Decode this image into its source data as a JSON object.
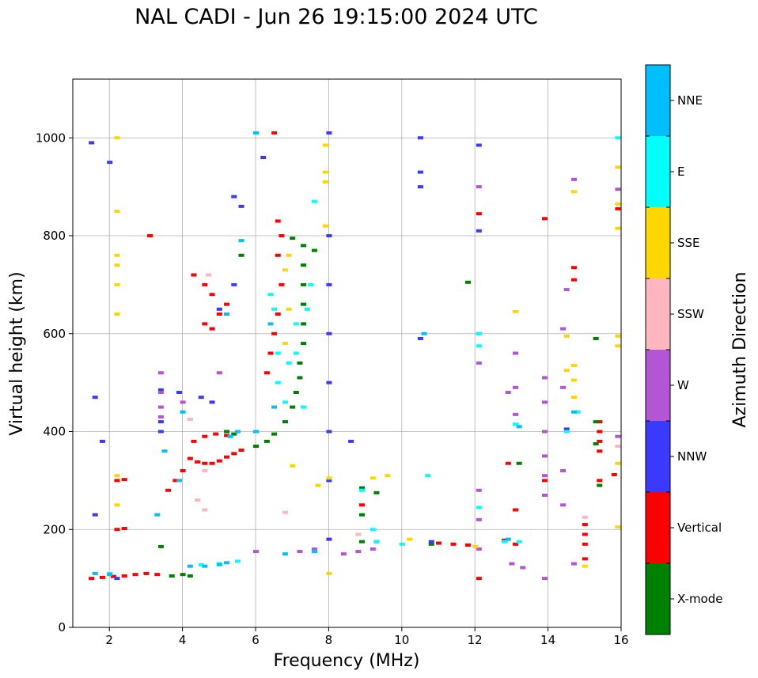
{
  "chart_data": {
    "type": "scatter",
    "title": "NAL CADI - Jun 26 19:15:00 2024 UTC",
    "xlabel": "Frequency (MHz)",
    "ylabel": "Virtual height (km)",
    "xlim": [
      1,
      16
    ],
    "ylim": [
      0,
      1120
    ],
    "xticks": [
      2,
      4,
      6,
      8,
      10,
      12,
      14,
      16
    ],
    "yticks": [
      0,
      200,
      400,
      600,
      800,
      1000
    ],
    "grid": true,
    "colorbar": {
      "label": "Azimuth Direction",
      "categories": [
        {
          "name": "X-mode",
          "color": "#008000"
        },
        {
          "name": "Vertical",
          "color": "#ff0000"
        },
        {
          "name": "NNW",
          "color": "#3a3aff"
        },
        {
          "name": "W",
          "color": "#b455d6"
        },
        {
          "name": "SSW",
          "color": "#ffb6c1"
        },
        {
          "name": "SSE",
          "color": "#ffd700"
        },
        {
          "name": "E",
          "color": "#00ffff"
        },
        {
          "name": "NNE",
          "color": "#00bfff"
        }
      ]
    },
    "series": [
      {
        "name": "Vertical",
        "points": [
          [
            1.5,
            100
          ],
          [
            1.8,
            102
          ],
          [
            2.1,
            104
          ],
          [
            2.4,
            105
          ],
          [
            2.7,
            108
          ],
          [
            3.0,
            110
          ],
          [
            3.3,
            108
          ],
          [
            2.2,
            200
          ],
          [
            2.4,
            202
          ],
          [
            2.2,
            300
          ],
          [
            2.4,
            302
          ],
          [
            3.6,
            280
          ],
          [
            3.8,
            300
          ],
          [
            4.0,
            320
          ],
          [
            4.2,
            345
          ],
          [
            4.4,
            338
          ],
          [
            4.6,
            335
          ],
          [
            4.8,
            335
          ],
          [
            5.0,
            340
          ],
          [
            5.2,
            348
          ],
          [
            5.4,
            355
          ],
          [
            5.6,
            362
          ],
          [
            4.3,
            380
          ],
          [
            4.6,
            390
          ],
          [
            4.9,
            395
          ],
          [
            5.2,
            392
          ],
          [
            4.3,
            720
          ],
          [
            4.6,
            700
          ],
          [
            4.8,
            680
          ],
          [
            4.6,
            620
          ],
          [
            4.8,
            610
          ],
          [
            5.0,
            640
          ],
          [
            5.2,
            660
          ],
          [
            6.3,
            520
          ],
          [
            6.4,
            560
          ],
          [
            6.5,
            600
          ],
          [
            6.6,
            640
          ],
          [
            6.7,
            700
          ],
          [
            6.6,
            760
          ],
          [
            6.7,
            800
          ],
          [
            6.6,
            830
          ],
          [
            6.5,
            1010
          ],
          [
            11.0,
            172
          ],
          [
            11.4,
            170
          ],
          [
            11.8,
            168
          ],
          [
            12.8,
            178
          ],
          [
            13.1,
            170
          ],
          [
            12.9,
            335
          ],
          [
            15.0,
            140
          ],
          [
            15.0,
            170
          ],
          [
            15.0,
            190
          ],
          [
            15.0,
            210
          ],
          [
            15.4,
            300
          ],
          [
            15.4,
            360
          ],
          [
            15.4,
            380
          ],
          [
            15.4,
            400
          ],
          [
            15.4,
            420
          ],
          [
            15.8,
            312
          ],
          [
            15.9,
            855
          ],
          [
            13.9,
            835
          ],
          [
            14.7,
            735
          ],
          [
            14.7,
            710
          ],
          [
            12.1,
            845
          ],
          [
            12.1,
            100
          ],
          [
            8.9,
            250
          ],
          [
            3.1,
            800
          ],
          [
            13.1,
            240
          ],
          [
            13.9,
            300
          ]
        ]
      },
      {
        "name": "X-mode",
        "points": [
          [
            3.7,
            105
          ],
          [
            4.0,
            108
          ],
          [
            4.2,
            105
          ],
          [
            3.4,
            165
          ],
          [
            8.9,
            175
          ],
          [
            9.3,
            175
          ],
          [
            10.8,
            170
          ],
          [
            13.2,
            335
          ],
          [
            11.8,
            705
          ],
          [
            6.0,
            370
          ],
          [
            6.3,
            380
          ],
          [
            6.5,
            395
          ],
          [
            6.8,
            420
          ],
          [
            7.0,
            450
          ],
          [
            7.1,
            480
          ],
          [
            7.2,
            510
          ],
          [
            7.2,
            540
          ],
          [
            7.3,
            580
          ],
          [
            7.3,
            620
          ],
          [
            7.3,
            660
          ],
          [
            7.3,
            700
          ],
          [
            7.3,
            740
          ],
          [
            7.3,
            780
          ],
          [
            5.6,
            760
          ],
          [
            5.2,
            400
          ],
          [
            5.4,
            395
          ],
          [
            7.6,
            770
          ],
          [
            15.3,
            590
          ],
          [
            15.3,
            420
          ],
          [
            15.3,
            375
          ],
          [
            15.4,
            290
          ],
          [
            8.9,
            285
          ],
          [
            9.3,
            275
          ],
          [
            8.9,
            230
          ],
          [
            7.0,
            795
          ]
        ]
      },
      {
        "name": "NNW",
        "points": [
          [
            1.5,
            990
          ],
          [
            2.2,
            100
          ],
          [
            1.8,
            380
          ],
          [
            1.6,
            470
          ],
          [
            1.6,
            230
          ],
          [
            2.0,
            950
          ],
          [
            3.4,
            485
          ],
          [
            3.4,
            420
          ],
          [
            3.4,
            400
          ],
          [
            3.9,
            480
          ],
          [
            4.5,
            470
          ],
          [
            4.8,
            460
          ],
          [
            5.0,
            650
          ],
          [
            5.4,
            700
          ],
          [
            5.4,
            880
          ],
          [
            5.6,
            860
          ],
          [
            6.2,
            960
          ],
          [
            8.0,
            180
          ],
          [
            8.0,
            1010
          ],
          [
            8.0,
            800
          ],
          [
            8.0,
            700
          ],
          [
            8.0,
            600
          ],
          [
            8.0,
            500
          ],
          [
            8.0,
            400
          ],
          [
            8.0,
            300
          ],
          [
            8.6,
            380
          ],
          [
            10.5,
            1000
          ],
          [
            10.5,
            930
          ],
          [
            10.5,
            900
          ],
          [
            10.5,
            590
          ],
          [
            10.8,
            175
          ],
          [
            12.1,
            985
          ],
          [
            12.1,
            810
          ],
          [
            14.5,
            405
          ]
        ]
      },
      {
        "name": "W",
        "points": [
          [
            3.4,
            520
          ],
          [
            3.4,
            480
          ],
          [
            3.4,
            450
          ],
          [
            3.4,
            430
          ],
          [
            4.0,
            460
          ],
          [
            5.0,
            520
          ],
          [
            6.0,
            155
          ],
          [
            7.2,
            155
          ],
          [
            7.6,
            160
          ],
          [
            8.4,
            150
          ],
          [
            9.2,
            160
          ],
          [
            8.8,
            155
          ],
          [
            12.1,
            280
          ],
          [
            12.1,
            220
          ],
          [
            12.1,
            160
          ],
          [
            12.1,
            540
          ],
          [
            12.1,
            600
          ],
          [
            12.1,
            900
          ],
          [
            13.1,
            435
          ],
          [
            13.1,
            490
          ],
          [
            13.1,
            560
          ],
          [
            12.9,
            480
          ],
          [
            13.9,
            510
          ],
          [
            13.9,
            460
          ],
          [
            13.9,
            400
          ],
          [
            13.9,
            350
          ],
          [
            13.9,
            310
          ],
          [
            13.9,
            270
          ],
          [
            13.9,
            100
          ],
          [
            14.4,
            250
          ],
          [
            14.4,
            320
          ],
          [
            14.4,
            490
          ],
          [
            14.4,
            610
          ],
          [
            14.5,
            690
          ],
          [
            14.7,
            915
          ],
          [
            14.7,
            130
          ],
          [
            15.9,
            895
          ],
          [
            15.9,
            390
          ],
          [
            13.0,
            130
          ],
          [
            13.3,
            122
          ]
        ]
      },
      {
        "name": "SSW",
        "points": [
          [
            4.4,
            260
          ],
          [
            4.6,
            240
          ],
          [
            4.2,
            425
          ],
          [
            4.6,
            320
          ],
          [
            6.8,
            235
          ],
          [
            8.8,
            190
          ],
          [
            15.0,
            225
          ],
          [
            15.9,
            370
          ],
          [
            4.7,
            720
          ]
        ]
      },
      {
        "name": "SSE",
        "points": [
          [
            2.2,
            1000
          ],
          [
            2.2,
            850
          ],
          [
            2.2,
            760
          ],
          [
            2.2,
            740
          ],
          [
            2.2,
            700
          ],
          [
            2.2,
            640
          ],
          [
            2.2,
            310
          ],
          [
            2.2,
            250
          ],
          [
            7.9,
            985
          ],
          [
            7.9,
            930
          ],
          [
            7.9,
            910
          ],
          [
            7.9,
            820
          ],
          [
            7.0,
            330
          ],
          [
            6.8,
            580
          ],
          [
            6.9,
            650
          ],
          [
            6.8,
            730
          ],
          [
            6.9,
            760
          ],
          [
            7.7,
            290
          ],
          [
            8.0,
            110
          ],
          [
            8.0,
            305
          ],
          [
            9.2,
            305
          ],
          [
            9.6,
            310
          ],
          [
            10.2,
            180
          ],
          [
            12.0,
            165
          ],
          [
            13.1,
            645
          ],
          [
            14.5,
            525
          ],
          [
            14.5,
            595
          ],
          [
            14.7,
            535
          ],
          [
            14.7,
            505
          ],
          [
            14.7,
            470
          ],
          [
            14.7,
            890
          ],
          [
            15.0,
            125
          ],
          [
            15.9,
            940
          ],
          [
            15.9,
            865
          ],
          [
            15.9,
            815
          ],
          [
            15.9,
            595
          ],
          [
            15.9,
            575
          ],
          [
            15.9,
            335
          ],
          [
            15.9,
            205
          ]
        ]
      },
      {
        "name": "E",
        "points": [
          [
            2.0,
            110
          ],
          [
            4.5,
            128
          ],
          [
            5.0,
            130
          ],
          [
            5.5,
            135
          ],
          [
            6.4,
            680
          ],
          [
            6.5,
            650
          ],
          [
            6.6,
            560
          ],
          [
            6.6,
            500
          ],
          [
            6.8,
            460
          ],
          [
            6.9,
            540
          ],
          [
            7.1,
            560
          ],
          [
            7.1,
            620
          ],
          [
            7.3,
            450
          ],
          [
            7.4,
            650
          ],
          [
            7.5,
            700
          ],
          [
            9.2,
            200
          ],
          [
            9.3,
            175
          ],
          [
            10.0,
            170
          ],
          [
            10.7,
            310
          ],
          [
            12.8,
            175
          ],
          [
            13.2,
            175
          ],
          [
            13.1,
            415
          ],
          [
            14.5,
            400
          ],
          [
            14.8,
            440
          ],
          [
            12.1,
            600
          ],
          [
            12.1,
            575
          ],
          [
            12.1,
            245
          ],
          [
            15.9,
            1000
          ],
          [
            7.6,
            870
          ],
          [
            8.9,
            280
          ]
        ]
      },
      {
        "name": "NNE",
        "points": [
          [
            1.6,
            110
          ],
          [
            2.0,
            108
          ],
          [
            4.2,
            125
          ],
          [
            4.6,
            125
          ],
          [
            5.0,
            128
          ],
          [
            5.2,
            132
          ],
          [
            6.0,
            1010
          ],
          [
            5.6,
            790
          ],
          [
            5.2,
            640
          ],
          [
            5.3,
            390
          ],
          [
            5.5,
            400
          ],
          [
            6.0,
            400
          ],
          [
            6.4,
            620
          ],
          [
            6.5,
            450
          ],
          [
            6.8,
            150
          ],
          [
            7.6,
            155
          ],
          [
            10.6,
            600
          ],
          [
            12.9,
            180
          ],
          [
            13.2,
            410
          ],
          [
            14.7,
            440
          ],
          [
            4.0,
            440
          ],
          [
            3.9,
            300
          ],
          [
            3.5,
            360
          ],
          [
            3.3,
            230
          ]
        ]
      }
    ]
  }
}
